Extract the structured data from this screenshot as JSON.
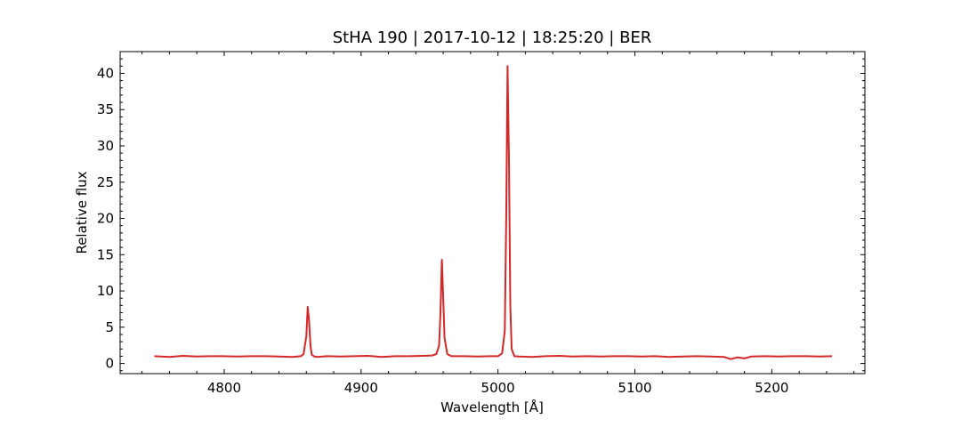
{
  "chart_data": {
    "type": "line",
    "title": "StHA 190 | 2017-10-12 | 18:25:20 | BER",
    "xlabel": "Wavelength [Å]",
    "ylabel": "Relative flux",
    "xlim": [
      4724,
      5268
    ],
    "ylim": [
      -1.4,
      43.0
    ],
    "xticks": [
      4800,
      4900,
      5000,
      5100,
      5200
    ],
    "yticks": [
      0,
      5,
      10,
      15,
      20,
      25,
      30,
      35,
      40
    ],
    "grid": false,
    "line_color": "#d62728",
    "series": [
      {
        "x": [
          4749,
          4760,
          4770,
          4780,
          4790,
          4800,
          4810,
          4820,
          4830,
          4840,
          4850,
          4856,
          4858,
          4860,
          4861,
          4862,
          4863,
          4864,
          4866,
          4868,
          4875,
          4885,
          4895,
          4905,
          4915,
          4925,
          4935,
          4945,
          4952,
          4955,
          4957,
          4958,
          4959,
          4960,
          4961,
          4963,
          4966,
          4975,
          4985,
          4995,
          5000,
          5003,
          5005,
          5006,
          5007,
          5008,
          5009,
          5010,
          5012,
          5015,
          5025,
          5035,
          5045,
          5055,
          5065,
          5075,
          5085,
          5095,
          5105,
          5115,
          5125,
          5135,
          5145,
          5155,
          5165,
          5170,
          5175,
          5180,
          5185,
          5195,
          5205,
          5215,
          5225,
          5235,
          5244
        ],
        "y": [
          1.0,
          0.9,
          1.05,
          0.95,
          1.0,
          1.0,
          0.95,
          1.0,
          1.0,
          0.95,
          0.9,
          1.0,
          1.3,
          3.8,
          7.8,
          6.0,
          2.5,
          1.2,
          0.95,
          0.9,
          1.0,
          0.95,
          1.0,
          1.05,
          0.9,
          1.0,
          1.0,
          1.05,
          1.1,
          1.3,
          2.5,
          7.0,
          14.3,
          9.0,
          3.5,
          1.3,
          1.0,
          1.0,
          0.95,
          1.0,
          1.0,
          1.4,
          4.5,
          20.0,
          41.0,
          28.0,
          8.0,
          2.0,
          1.0,
          0.95,
          0.9,
          1.0,
          1.05,
          0.95,
          1.0,
          0.95,
          1.0,
          1.0,
          0.95,
          1.0,
          0.9,
          0.95,
          1.0,
          0.95,
          0.9,
          0.6,
          0.85,
          0.7,
          0.95,
          1.0,
          0.95,
          1.0,
          1.0,
          0.95,
          1.0
        ]
      }
    ]
  }
}
